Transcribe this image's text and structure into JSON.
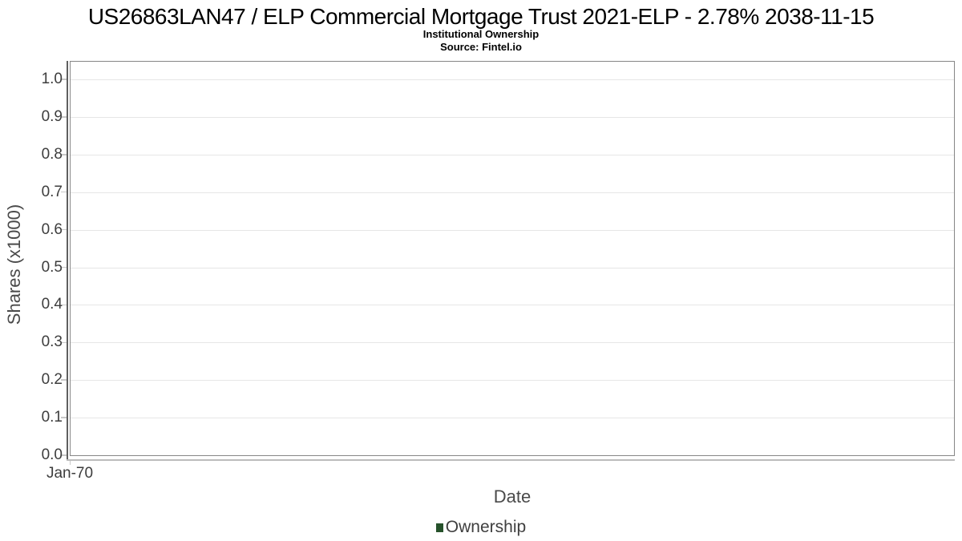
{
  "chart_data": {
    "type": "line",
    "title": "US26863LAN47 / ELP Commercial Mortgage Trust 2021-ELP - 2.78% 2038-11-15",
    "subtitle": "Institutional Ownership",
    "source": "Source: Fintel.io",
    "xlabel": "Date",
    "ylabel": "Shares (x1000)",
    "x_ticks": [
      "Jan-70"
    ],
    "y_ticks": [
      "0.0",
      "0.1",
      "0.2",
      "0.3",
      "0.4",
      "0.5",
      "0.6",
      "0.7",
      "0.8",
      "0.9",
      "1.0"
    ],
    "ylim": [
      0,
      1.047
    ],
    "grid": true,
    "legend_position": "bottom",
    "series": [
      {
        "name": "Ownership",
        "color": "#26522b",
        "x": [],
        "values": []
      }
    ]
  },
  "colors": {
    "legend_marker": "#26522b",
    "gridline": "#e6e6e6",
    "plot_border": "#868686",
    "axis_text": "#3d3d3d"
  }
}
